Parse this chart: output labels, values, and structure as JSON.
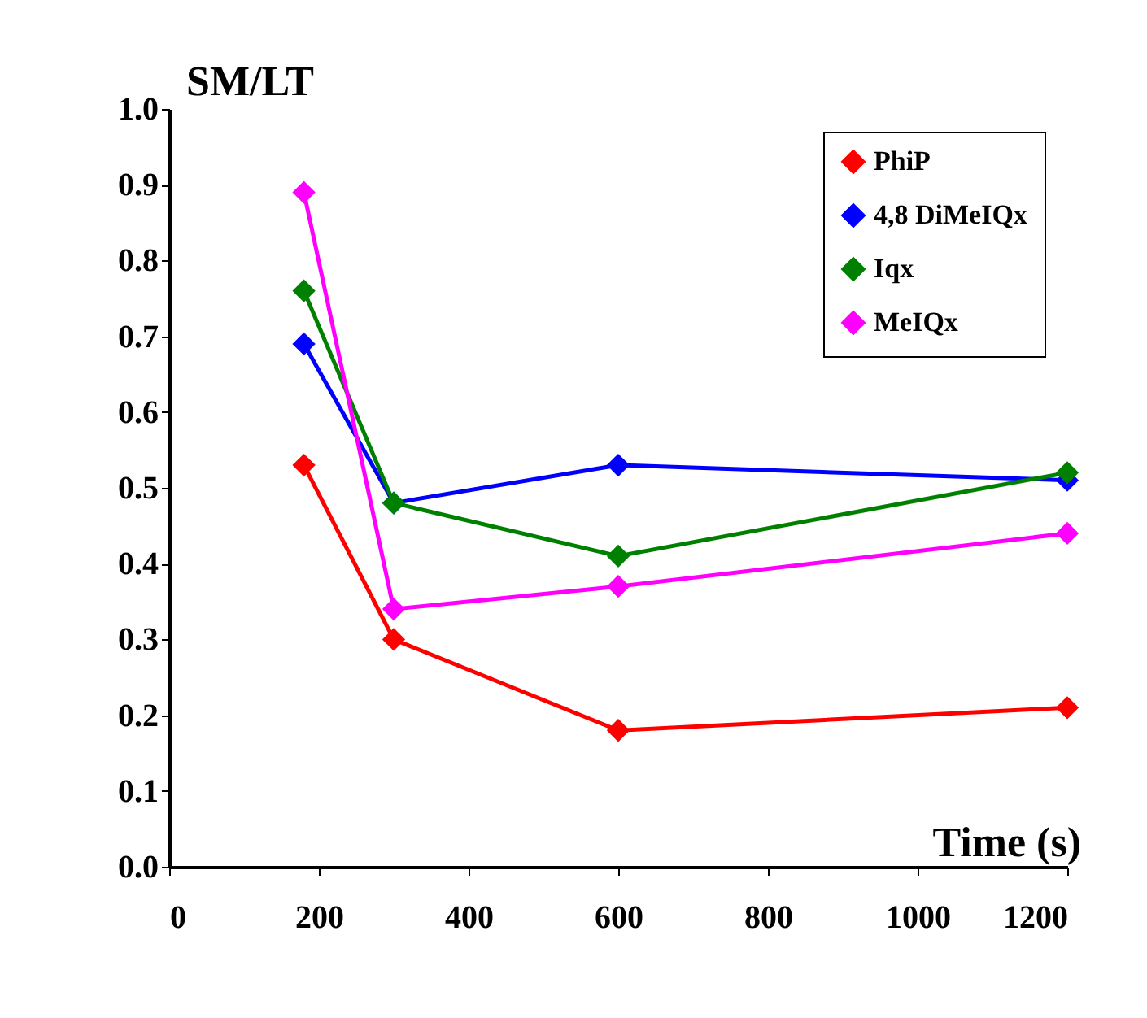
{
  "chart_data": {
    "type": "line",
    "xlabel": "Time (s)",
    "ylabel": "SM/LT",
    "x": [
      180,
      300,
      600,
      1200
    ],
    "xlim": [
      0,
      1200
    ],
    "xticks": [
      0,
      200,
      400,
      600,
      800,
      1000,
      1200
    ],
    "ylim": [
      0,
      1
    ],
    "yticks": [
      {
        "value": 0,
        "label": "0.0"
      },
      0.1,
      0.2,
      0.3,
      0.4,
      0.5,
      0.6,
      0.7,
      0.8,
      0.9,
      {
        "value": 1,
        "label": "1.0"
      }
    ],
    "grid": false,
    "legend": "top right",
    "marker": "diamond",
    "line_style": "solid",
    "series": [
      {
        "name": "PhiP",
        "color": "#ff0000",
        "values": [
          0.53,
          0.3,
          0.18,
          0.21
        ]
      },
      {
        "name": "4,8 DiMeIQx",
        "color": "#0000ff",
        "values": [
          0.69,
          0.48,
          0.53,
          0.51
        ]
      },
      {
        "name": "Iqx",
        "color": "#008000",
        "values": [
          0.76,
          0.48,
          0.41,
          0.52
        ]
      },
      {
        "name": "MeIQx",
        "color": "#ff00ff",
        "values": [
          0.89,
          0.34,
          0.37,
          0.44
        ]
      }
    ]
  }
}
